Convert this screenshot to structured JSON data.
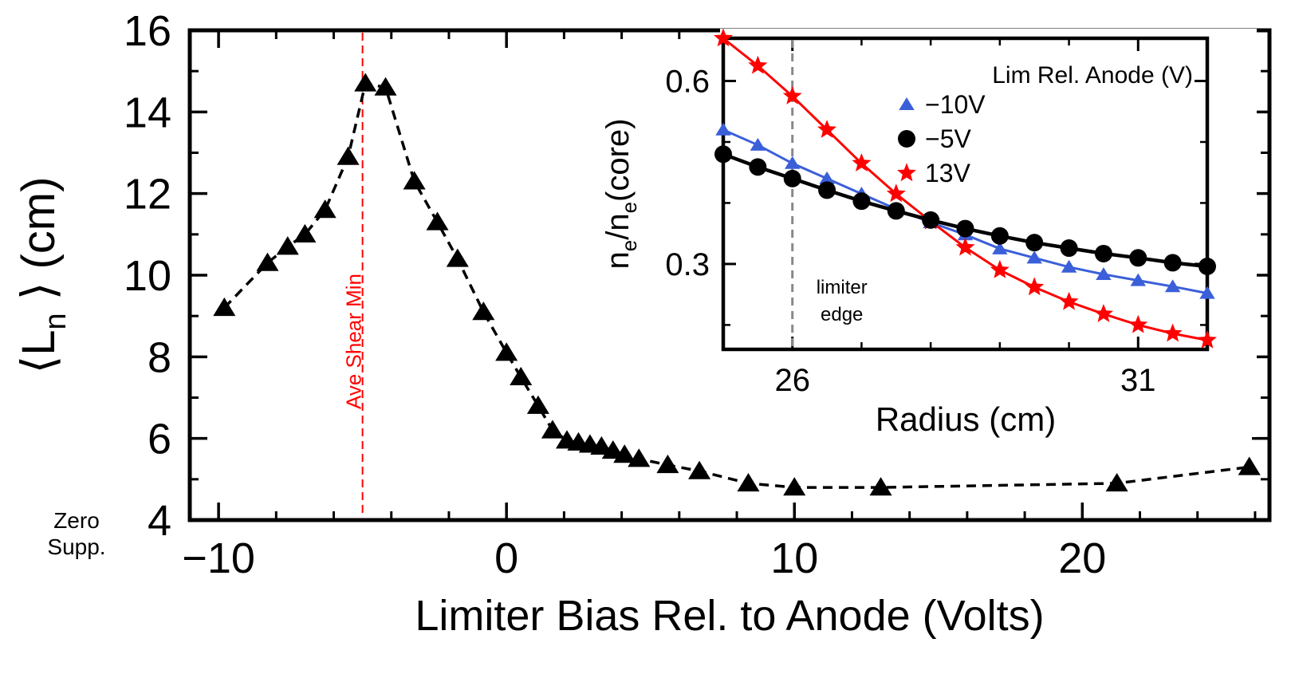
{
  "chart_data": [
    {
      "type": "line",
      "name": "main",
      "xlabel": "Limiter Bias Rel. to Anode (Volts)",
      "ylabel_base": "⟨L",
      "ylabel_sub": "n",
      "ylabel_tail": " ⟩ (cm)",
      "xlim": [
        -11,
        26.5
      ],
      "ylim": [
        4,
        16
      ],
      "xticks": [
        -10,
        0,
        10,
        20
      ],
      "xtick_labels": [
        "−10",
        "0",
        "10",
        "20"
      ],
      "yticks": [
        4,
        6,
        8,
        10,
        12,
        14,
        16
      ],
      "ytick_labels": [
        "4",
        "6",
        "8",
        "10",
        "12",
        "14",
        "16"
      ],
      "zero_supp_label": [
        "Zero",
        "Supp."
      ],
      "annotation": {
        "text": "Ave Shear Min",
        "x": -5,
        "color": "#ff0000"
      },
      "series": [
        {
          "name": "Ln",
          "marker": "triangle",
          "color": "#000000",
          "linestyle": "dashed",
          "x": [
            -9.8,
            -8.3,
            -7.6,
            -7.0,
            -6.3,
            -5.5,
            -4.9,
            -4.2,
            -3.2,
            -2.4,
            -1.7,
            -0.8,
            0.0,
            0.5,
            1.1,
            1.6,
            2.1,
            2.5,
            2.9,
            3.3,
            3.7,
            4.1,
            4.6,
            5.6,
            6.7,
            8.4,
            10.0,
            13.0,
            21.2,
            25.8
          ],
          "y": [
            9.2,
            10.3,
            10.7,
            11.0,
            11.6,
            12.9,
            14.7,
            14.6,
            12.3,
            11.3,
            10.4,
            9.1,
            8.1,
            7.5,
            6.8,
            6.2,
            5.95,
            5.9,
            5.85,
            5.8,
            5.7,
            5.6,
            5.5,
            5.35,
            5.2,
            4.9,
            4.8,
            4.8,
            4.9,
            5.3
          ]
        }
      ]
    },
    {
      "type": "line",
      "name": "inset",
      "xlabel": "Radius (cm)",
      "ylabel_parts": [
        "n",
        "e",
        "/n",
        "e",
        "(core)"
      ],
      "xlim": [
        25.0,
        32.0
      ],
      "ylim": [
        0.16,
        0.67
      ],
      "xticks": [
        26,
        31
      ],
      "xtick_labels": [
        "26",
        "31"
      ],
      "yticks": [
        0.3,
        0.6
      ],
      "ytick_labels": [
        "0.3",
        "0.6"
      ],
      "legend_title": "Lim Rel. Anode (V)",
      "annotation": {
        "lines": [
          "limiter",
          "edge"
        ],
        "x": 26.0,
        "color": "#888888"
      },
      "x": [
        25.0,
        25.5,
        26.0,
        26.5,
        27.0,
        27.5,
        28.0,
        28.5,
        29.0,
        29.5,
        30.0,
        30.5,
        31.0,
        31.5,
        32.0
      ],
      "series": [
        {
          "name": "−10V",
          "marker": "triangle",
          "color": "#3b5fd9",
          "y": [
            0.52,
            0.495,
            0.465,
            0.44,
            0.415,
            0.39,
            0.368,
            0.348,
            0.325,
            0.31,
            0.295,
            0.283,
            0.273,
            0.263,
            0.252
          ]
        },
        {
          "name": "−5V",
          "marker": "circle",
          "color": "#000000",
          "y": [
            0.48,
            0.459,
            0.44,
            0.421,
            0.403,
            0.387,
            0.372,
            0.358,
            0.346,
            0.335,
            0.326,
            0.317,
            0.31,
            0.302,
            0.296
          ]
        },
        {
          "name": "13V",
          "marker": "star",
          "color": "#ff0000",
          "y": [
            0.67,
            0.625,
            0.575,
            0.52,
            0.465,
            0.415,
            0.37,
            0.327,
            0.29,
            0.262,
            0.238,
            0.218,
            0.2,
            0.186,
            0.175
          ]
        }
      ]
    }
  ]
}
